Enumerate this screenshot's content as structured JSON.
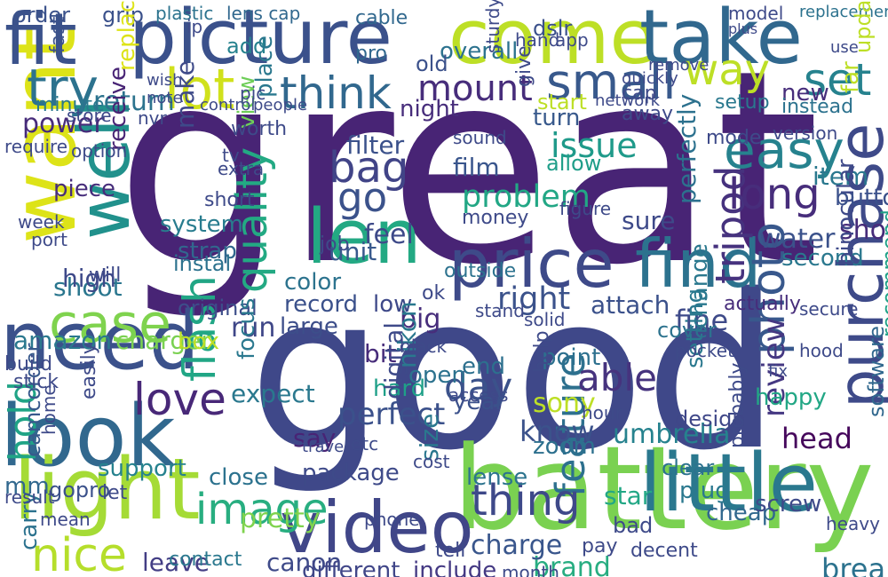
{
  "words": [
    {
      "text": "great",
      "color": "#482475"
    },
    {
      "text": "good",
      "color": "#3f4889"
    },
    {
      "text": "battery",
      "color": "#7ad151"
    },
    {
      "text": "picture",
      "color": "#3b518b"
    },
    {
      "text": "come",
      "color": "#bddf26"
    },
    {
      "text": "take",
      "color": "#31688e"
    },
    {
      "text": "len",
      "color": "#23a983"
    },
    {
      "text": "price",
      "color": "#3e4a89"
    },
    {
      "text": "find",
      "color": "#2c728e"
    },
    {
      "text": "look",
      "color": "#31688e"
    },
    {
      "text": "need",
      "color": "#3b518b"
    },
    {
      "text": "light",
      "color": "#a5db36"
    },
    {
      "text": "want",
      "color": "#dde318"
    },
    {
      "text": "well",
      "color": "#21918c"
    },
    {
      "text": "fit",
      "color": "#3b528b"
    },
    {
      "text": "video",
      "color": "#404688"
    },
    {
      "text": "little",
      "color": "#2a788e"
    },
    {
      "text": "purchase",
      "color": "#3e4a89"
    },
    {
      "text": "easy",
      "color": "#26828e"
    },
    {
      "text": "small",
      "color": "#38598c"
    },
    {
      "text": "way",
      "color": "#bddf26"
    },
    {
      "text": "lot",
      "color": "#d0e11c"
    },
    {
      "text": "think",
      "color": "#31688e"
    },
    {
      "text": "try",
      "color": "#2c728e"
    },
    {
      "text": "bag",
      "color": "#414487"
    },
    {
      "text": "mount",
      "color": "#472d7b"
    },
    {
      "text": "case",
      "color": "#7fd34e"
    },
    {
      "text": "image",
      "color": "#28ae80"
    },
    {
      "text": "nice",
      "color": "#b5de2b"
    },
    {
      "text": "flash",
      "color": "#21a685"
    },
    {
      "text": "quality",
      "color": "#23a983"
    },
    {
      "text": "photo",
      "color": "#38588c"
    },
    {
      "text": "tripod",
      "color": "#46327e"
    },
    {
      "text": "long",
      "color": "#472d7b"
    },
    {
      "text": "set",
      "color": "#26828e"
    },
    {
      "text": "go",
      "color": "#3b528b"
    },
    {
      "text": "love",
      "color": "#482878"
    },
    {
      "text": "feature",
      "color": "#2d708e"
    },
    {
      "text": "thing",
      "color": "#3e4989"
    },
    {
      "text": "day",
      "color": "#3b528b"
    },
    {
      "text": "able",
      "color": "#46337e"
    },
    {
      "text": "right",
      "color": "#3b528b"
    },
    {
      "text": "issue",
      "color": "#1f9a8a"
    },
    {
      "text": "problem",
      "color": "#22a785"
    },
    {
      "text": "hold",
      "color": "#20a486"
    },
    {
      "text": "amazon",
      "color": "#2a788e"
    },
    {
      "text": "charger",
      "color": "#7ad151"
    },
    {
      "text": "shoot",
      "color": "#2a768e"
    },
    {
      "text": "system",
      "color": "#287c8e"
    },
    {
      "text": "perfect",
      "color": "#3b518b"
    },
    {
      "text": "review",
      "color": "#453882"
    },
    {
      "text": "water",
      "color": "#3b528b"
    },
    {
      "text": "shot",
      "color": "#472c7a"
    },
    {
      "text": "perfectly",
      "color": "#2c718e"
    },
    {
      "text": "umbrella",
      "color": "#26828e"
    },
    {
      "text": "head",
      "color": "#46085c"
    },
    {
      "text": "break",
      "color": "#2c728e"
    },
    {
      "text": "sony",
      "color": "#bddf26"
    },
    {
      "text": "know",
      "color": "#3b528b"
    },
    {
      "text": "pretty",
      "color": "#7fd34e"
    },
    {
      "text": "canon",
      "color": "#3e4a89"
    },
    {
      "text": "different",
      "color": "#404688"
    },
    {
      "text": "include",
      "color": "#443983"
    },
    {
      "text": "brand",
      "color": "#27ad81"
    },
    {
      "text": "charge",
      "color": "#39568c"
    },
    {
      "text": "leave",
      "color": "#433e85"
    },
    {
      "text": "contact",
      "color": "#2a788e"
    },
    {
      "text": "fine",
      "color": "#3e4a89"
    },
    {
      "text": "record",
      "color": "#3b518b"
    },
    {
      "text": "low",
      "color": "#3e4989"
    },
    {
      "text": "big",
      "color": "#472d7b"
    },
    {
      "text": "run",
      "color": "#3f4788"
    },
    {
      "text": "original",
      "color": "#3d4e8a"
    },
    {
      "text": "expect",
      "color": "#2a788e"
    },
    {
      "text": "strap",
      "color": "#31688e"
    },
    {
      "text": "high",
      "color": "#3e4989"
    },
    {
      "text": "power",
      "color": "#472c7a"
    },
    {
      "text": "return",
      "color": "#2c738e"
    },
    {
      "text": "filter",
      "color": "#3b518b"
    },
    {
      "text": "film",
      "color": "#39558c"
    },
    {
      "text": "night",
      "color": "#472d7b"
    },
    {
      "text": "turn",
      "color": "#38598c"
    },
    {
      "text": "start",
      "color": "#bddf26"
    },
    {
      "text": "allow",
      "color": "#1f9e89"
    },
    {
      "text": "item",
      "color": "#2a788e"
    },
    {
      "text": "new",
      "color": "#472d7b"
    },
    {
      "text": "second",
      "color": "#2a788e"
    },
    {
      "text": "recommend",
      "color": "#1fa287"
    },
    {
      "text": "software",
      "color": "#31688e"
    },
    {
      "text": "design",
      "color": "#3f4788"
    },
    {
      "text": "clear",
      "color": "#2c728e"
    },
    {
      "text": "happy",
      "color": "#22a785"
    },
    {
      "text": "setting",
      "color": "#2a788e"
    },
    {
      "text": "change",
      "color": "#2a788e"
    },
    {
      "text": "sure",
      "color": "#3e4a89"
    },
    {
      "text": "attach",
      "color": "#3b518b"
    },
    {
      "text": "actually",
      "color": "#472d7b"
    },
    {
      "text": "feel",
      "color": "#3e4a89"
    },
    {
      "text": "unit",
      "color": "#38598c"
    },
    {
      "text": "color",
      "color": "#2c738e"
    },
    {
      "text": "large",
      "color": "#3d4e8a"
    },
    {
      "text": "say",
      "color": "#482475"
    },
    {
      "text": "bit",
      "color": "#472c7a"
    },
    {
      "text": "hard",
      "color": "#1fa088"
    },
    {
      "text": "open",
      "color": "#2c728e"
    },
    {
      "text": "end",
      "color": "#2d708e"
    },
    {
      "text": "point",
      "color": "#2d708e"
    },
    {
      "text": "year",
      "color": "#3b518b"
    },
    {
      "text": "zoom",
      "color": "#2d708e"
    },
    {
      "text": "star",
      "color": "#22a785"
    },
    {
      "text": "plug",
      "color": "#2a788e"
    },
    {
      "text": "cheap",
      "color": "#31688e"
    },
    {
      "text": "screw",
      "color": "#3e4a89"
    },
    {
      "text": "cover",
      "color": "#2c728e"
    },
    {
      "text": "binocular",
      "color": "#3e4989"
    },
    {
      "text": "button",
      "color": "#3b518b"
    },
    {
      "text": "camcorder",
      "color": "#38598c"
    },
    {
      "text": "carry",
      "color": "#2c728e"
    },
    {
      "text": "mm",
      "color": "#31688e"
    },
    {
      "text": "support",
      "color": "#26828e"
    },
    {
      "text": "gopro",
      "color": "#3b518b"
    },
    {
      "text": "close",
      "color": "#2c728e"
    },
    {
      "text": "lense",
      "color": "#2c738e"
    },
    {
      "text": "package",
      "color": "#3e4a89"
    },
    {
      "text": "digital",
      "color": "#3e4a89"
    },
    {
      "text": "size",
      "color": "#2a788e"
    },
    {
      "text": "nikon",
      "color": "#2a788e"
    },
    {
      "text": "job",
      "color": "#3e4a89"
    },
    {
      "text": "outside",
      "color": "#2c728e"
    },
    {
      "text": "money",
      "color": "#3e4a89"
    },
    {
      "text": "focus",
      "color": "#2a788e"
    },
    {
      "text": "instal",
      "color": "#2c728e"
    },
    {
      "text": "receive",
      "color": "#482475"
    },
    {
      "text": "make",
      "color": "#3e4a89"
    },
    {
      "text": "view",
      "color": "#6ece58"
    },
    {
      "text": "piece",
      "color": "#472d7b"
    },
    {
      "text": "worth",
      "color": "#3e4a89"
    },
    {
      "text": "minute",
      "color": "#2a788e"
    },
    {
      "text": "order",
      "color": "#3b528b"
    },
    {
      "text": "grip",
      "color": "#3b518b"
    },
    {
      "text": "plastic",
      "color": "#2c738e"
    },
    {
      "text": "lens cap",
      "color": "#31688e"
    },
    {
      "text": "cable",
      "color": "#31688e"
    },
    {
      "text": "overall",
      "color": "#2c728e"
    },
    {
      "text": "replacement",
      "color": "#2c728e"
    },
    {
      "text": "add",
      "color": "#26828e"
    },
    {
      "text": "place",
      "color": "#2a788e"
    },
    {
      "text": "replace",
      "color": "#dde318"
    },
    {
      "text": "pro",
      "color": "#31688e"
    },
    {
      "text": "old",
      "color": "#3b518b"
    },
    {
      "text": "build",
      "color": "#3e4a89"
    },
    {
      "text": "stick",
      "color": "#3e4a89"
    },
    {
      "text": "box",
      "color": "#bddf26"
    },
    {
      "text": "fast",
      "color": "#3b518b"
    },
    {
      "text": "far",
      "color": "#bddf26"
    },
    {
      "text": "update",
      "color": "#bddf26"
    },
    {
      "text": "dslr",
      "color": "#3b518b"
    },
    {
      "text": "app",
      "color": "#3e4a89"
    },
    {
      "text": "hand",
      "color": "#3e4a89"
    },
    {
      "text": "cap",
      "color": "#3e4a89"
    },
    {
      "text": "setup",
      "color": "#2a788e"
    },
    {
      "text": "instead",
      "color": "#2c728e"
    },
    {
      "text": "mode",
      "color": "#3e4a89"
    },
    {
      "text": "give",
      "color": "#3e4a89"
    },
    {
      "text": "sound",
      "color": "#3e4a89"
    },
    {
      "text": "network",
      "color": "#3e4a89"
    },
    {
      "text": "home",
      "color": "#3e4a89"
    },
    {
      "text": "ok",
      "color": "#3e4a89"
    },
    {
      "text": "black",
      "color": "#3e4a89"
    },
    {
      "text": "stand",
      "color": "#3e4a89"
    },
    {
      "text": "figure",
      "color": "#3e4a89"
    },
    {
      "text": "let",
      "color": "#3e4a89"
    },
    {
      "text": "result",
      "color": "#3e4a89"
    },
    {
      "text": "mean",
      "color": "#3e4a89"
    },
    {
      "text": "easily",
      "color": "#3e4a89"
    },
    {
      "text": "solid",
      "color": "#3e4a89"
    },
    {
      "text": "pocket",
      "color": "#3e4a89"
    },
    {
      "text": "decent",
      "color": "#3e4a89"
    },
    {
      "text": "extra",
      "color": "#3e4a89"
    },
    {
      "text": "port",
      "color": "#3e4a89"
    },
    {
      "text": "week",
      "color": "#3e4a89"
    },
    {
      "text": "bad",
      "color": "#3e4a89"
    },
    {
      "text": "tell",
      "color": "#3e4a89"
    },
    {
      "text": "phone",
      "color": "#3e4a89"
    },
    {
      "text": "access",
      "color": "#3e4a89"
    },
    {
      "text": "help",
      "color": "#3e4a89"
    },
    {
      "text": "cost",
      "color": "#3e4a89"
    },
    {
      "text": "hood",
      "color": "#3e4a89"
    },
    {
      "text": "secure",
      "color": "#3e4a89"
    },
    {
      "text": "version",
      "color": "#3e4a89"
    },
    {
      "text": "heavy",
      "color": "#3e4a89"
    },
    {
      "text": "sturdy",
      "color": "#3e4a89"
    },
    {
      "text": "model",
      "color": "#3e4a89"
    },
    {
      "text": "hour",
      "color": "#3e4a89"
    },
    {
      "text": "plus",
      "color": "#3e4a89"
    },
    {
      "text": "month",
      "color": "#3e4a89"
    },
    {
      "text": "tv",
      "color": "#3e4a89"
    },
    {
      "text": "away",
      "color": "#3e4a89"
    },
    {
      "text": "quickly",
      "color": "#3e4a89"
    },
    {
      "text": "remove",
      "color": "#3e4a89"
    },
    {
      "text": "probably",
      "color": "#3e4a89"
    },
    {
      "text": "pay",
      "color": "#3e4a89"
    },
    {
      "text": "nvr",
      "color": "#3e4a89"
    },
    {
      "text": "note",
      "color": "#3e4a89"
    },
    {
      "text": "wish",
      "color": "#3e4a89"
    },
    {
      "text": "store",
      "color": "#3e4a89"
    },
    {
      "text": "pic",
      "color": "#3e4a89"
    },
    {
      "text": "people",
      "color": "#3e4a89"
    },
    {
      "text": "control",
      "color": "#3e4a89"
    },
    {
      "text": "require",
      "color": "#3e4a89"
    },
    {
      "text": "option",
      "color": "#3e4a89"
    },
    {
      "text": "will",
      "color": "#3e4a89"
    },
    {
      "text": "travel",
      "color": "#3e4a89"
    },
    {
      "text": "fix",
      "color": "#3e4a89"
    },
    {
      "text": "short",
      "color": "#3e4a89"
    },
    {
      "text": "ip",
      "color": "#3e4a89"
    },
    {
      "text": "etc",
      "color": "#3e4a89"
    },
    {
      "text": "use",
      "color": "#3e4a89"
    }
  ]
}
